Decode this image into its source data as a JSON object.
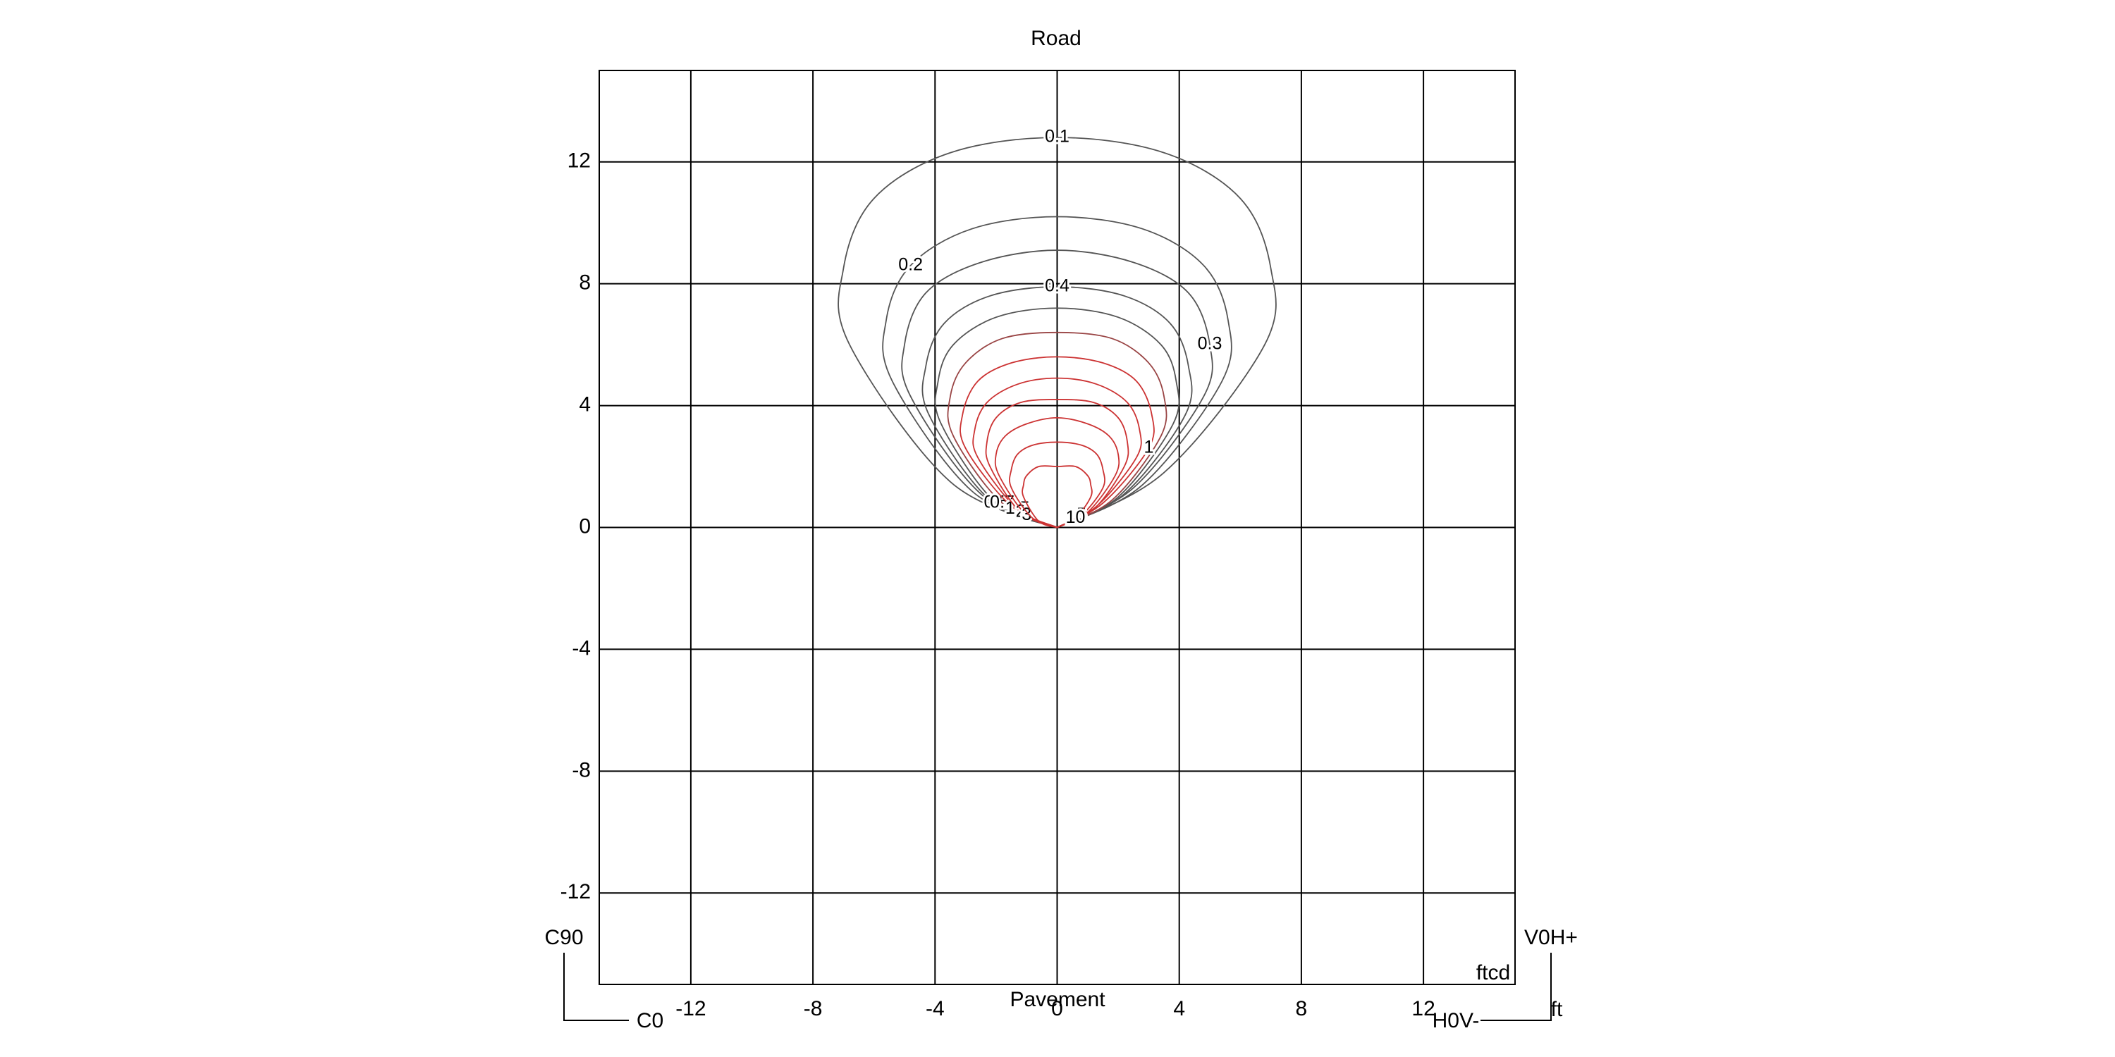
{
  "chart_data": {
    "type": "contour",
    "title": "Road",
    "xlabel": "Pavement",
    "annotations": [
      "C90",
      "C0",
      "V0H+",
      "H0V-",
      "ftcd",
      "ft"
    ],
    "xlim": [
      -15,
      15
    ],
    "ylim": [
      -15,
      15
    ],
    "xticks": [
      -12,
      -8,
      -4,
      0,
      4,
      8,
      12
    ],
    "yticks": [
      -12,
      -8,
      -4,
      0,
      4,
      8,
      12
    ],
    "grid": true,
    "contours": [
      {
        "level": 0.1,
        "color": "#555555",
        "x": [
          0,
          -3.5,
          -6.8,
          -7,
          -6,
          -3.5,
          0,
          3.5,
          6,
          7,
          6.8,
          3.5,
          0
        ],
        "y": [
          0,
          1.5,
          6,
          8.5,
          10.8,
          12.3,
          12.8,
          12.3,
          10.8,
          8.5,
          6,
          1.8,
          0
        ]
      },
      {
        "level": 0.2,
        "color": "#555555",
        "x": [
          0,
          -2.8,
          -5.4,
          -5.6,
          -4.8,
          -2.8,
          0,
          2.8,
          4.8,
          5.6,
          5.4,
          2.8,
          0
        ],
        "y": [
          0,
          1.2,
          4.8,
          6.8,
          8.6,
          9.8,
          10.2,
          9.8,
          8.6,
          6.8,
          4.8,
          1.4,
          0
        ]
      },
      {
        "level": 0.3,
        "color": "#555555",
        "x": [
          0,
          -2.5,
          -4.8,
          -5,
          -4.3,
          -2.5,
          0,
          2.5,
          4.3,
          5,
          4.8,
          2.5,
          0
        ],
        "y": [
          0,
          1.1,
          4.3,
          6,
          7.7,
          8.7,
          9.1,
          8.7,
          7.7,
          6,
          4.3,
          1.3,
          0
        ]
      },
      {
        "level": 0.4,
        "color": "#555555",
        "x": [
          0,
          -2.2,
          -4.2,
          -4.3,
          -3.7,
          -2.2,
          0,
          2.2,
          3.7,
          4.3,
          4.2,
          2.2,
          0
        ],
        "y": [
          0,
          0.9,
          3.7,
          5.3,
          6.7,
          7.6,
          7.9,
          7.6,
          6.7,
          5.3,
          3.7,
          1.1,
          0
        ]
      },
      {
        "level": 0.5,
        "color": "#555555",
        "x": [
          0,
          -2,
          -3.8,
          -3.9,
          -3.4,
          -2,
          0,
          2,
          3.4,
          3.9,
          3.8,
          2,
          0
        ],
        "y": [
          0,
          0.8,
          3.4,
          4.8,
          6,
          6.9,
          7.2,
          6.9,
          6,
          4.8,
          3.4,
          1,
          0
        ]
      },
      {
        "level": 0.7,
        "color": "#994444",
        "x": [
          0,
          -1.8,
          -3.4,
          -3.5,
          -3,
          -1.8,
          0,
          1.8,
          3,
          3.5,
          3.4,
          1.8,
          0
        ],
        "y": [
          0,
          0.8,
          3,
          4.3,
          5.4,
          6.2,
          6.4,
          6.2,
          5.4,
          4.3,
          3,
          0.9,
          0
        ]
      },
      {
        "level": 1,
        "color": "#cc3333",
        "x": [
          0,
          -1.5,
          -3,
          -3.1,
          -2.6,
          -1.5,
          0,
          1.5,
          2.6,
          3.1,
          3,
          1.5,
          0
        ],
        "y": [
          0,
          0.7,
          2.6,
          3.7,
          4.8,
          5.4,
          5.6,
          5.4,
          4.8,
          3.7,
          2.6,
          0.8,
          0
        ]
      },
      {
        "level": 1.5,
        "color": "#cc3333",
        "x": [
          0,
          -1.3,
          -2.6,
          -2.7,
          -2.3,
          -1.3,
          0,
          1.3,
          2.3,
          2.7,
          2.6,
          1.3,
          0
        ],
        "y": [
          0,
          0.6,
          2.3,
          3.2,
          4.1,
          4.7,
          4.9,
          4.7,
          4.1,
          3.2,
          2.3,
          0.7,
          0
        ]
      },
      {
        "level": 2,
        "color": "#cc3333",
        "x": [
          0,
          -1.2,
          -2.2,
          -2.3,
          -2,
          -1.2,
          0,
          1.2,
          2,
          2.3,
          2.2,
          1.2,
          0
        ],
        "y": [
          0,
          0.5,
          2,
          2.8,
          3.6,
          4.1,
          4.2,
          4.1,
          3.6,
          2.8,
          2,
          0.6,
          0
        ]
      },
      {
        "level": 3,
        "color": "#cc3333",
        "x": [
          0,
          -1,
          -1.9,
          -2,
          -1.7,
          -1,
          0,
          1,
          1.7,
          2,
          1.9,
          1,
          0
        ],
        "y": [
          0,
          0.4,
          1.7,
          2.4,
          3,
          3.4,
          3.6,
          3.4,
          3,
          2.4,
          1.7,
          0.5,
          0
        ]
      },
      {
        "level": 5,
        "color": "#cc3333",
        "x": [
          0,
          -0.8,
          -1.5,
          -1.5,
          -1.3,
          -0.8,
          0,
          0.8,
          1.3,
          1.5,
          1.5,
          0.8,
          0
        ],
        "y": [
          0,
          0.3,
          1.3,
          1.9,
          2.4,
          2.7,
          2.8,
          2.7,
          2.4,
          1.9,
          1.3,
          0.4,
          0
        ]
      },
      {
        "level": 10,
        "color": "#cc3333",
        "x": [
          0,
          -0.6,
          -1.1,
          -1.1,
          -1,
          -0.6,
          0,
          0.6,
          1,
          1.1,
          1.1,
          0.6,
          0
        ],
        "y": [
          0,
          0.2,
          1,
          1.4,
          1.7,
          2,
          2,
          2,
          1.7,
          1.4,
          1,
          0.3,
          0
        ]
      }
    ]
  }
}
